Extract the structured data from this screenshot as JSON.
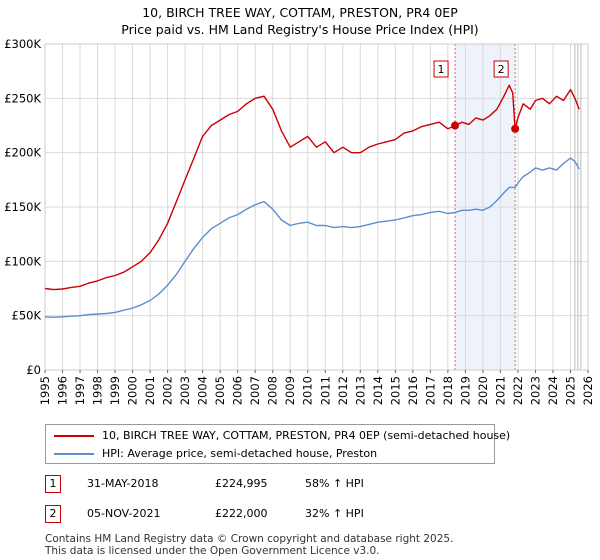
{
  "title_line1": "10, BIRCH TREE WAY, COTTAM, PRESTON, PR4 0EP",
  "title_line2": "Price paid vs. HM Land Registry's House Price Index (HPI)",
  "legend": {
    "property_label": "10, BIRCH TREE WAY, COTTAM, PRESTON, PR4 0EP (semi-detached house)",
    "hpi_label": "HPI: Average price, semi-detached house, Preston"
  },
  "transactions": [
    {
      "num": "1",
      "date": "31-MAY-2018",
      "price": "£224,995",
      "hpi": "58% ↑ HPI"
    },
    {
      "num": "2",
      "date": "05-NOV-2021",
      "price": "£222,000",
      "hpi": "32% ↑ HPI"
    }
  ],
  "footer": {
    "line1": "Contains HM Land Registry data © Crown copyright and database right 2025.",
    "line2": "This data is licensed under the Open Government Licence v3.0."
  },
  "colors": {
    "property": "#cc0000",
    "hpi": "#5b8fcc",
    "shade": "#eef2fb",
    "grid": "#d9d9d9",
    "marker_line": "#e06666"
  },
  "chart_data": {
    "type": "line",
    "title": "Price paid vs. HM Land Registry's House Price Index (HPI)",
    "xlabel": "",
    "ylabel": "",
    "xlim": [
      1995,
      2026
    ],
    "ylim": [
      0,
      300000
    ],
    "y_ticks": [
      {
        "value": 0,
        "label": "£0"
      },
      {
        "value": 50000,
        "label": "£50K"
      },
      {
        "value": 100000,
        "label": "£100K"
      },
      {
        "value": 150000,
        "label": "£150K"
      },
      {
        "value": 200000,
        "label": "£200K"
      },
      {
        "value": 250000,
        "label": "£250K"
      },
      {
        "value": 300000,
        "label": "£300K"
      }
    ],
    "x_ticks": [
      "1995",
      "1996",
      "1997",
      "1998",
      "1999",
      "2000",
      "2001",
      "2002",
      "2003",
      "2004",
      "2005",
      "2006",
      "2007",
      "2008",
      "2009",
      "2010",
      "2011",
      "2012",
      "2013",
      "2014",
      "2015",
      "2016",
      "2017",
      "2018",
      "2019",
      "2020",
      "2021",
      "2022",
      "2023",
      "2024",
      "2025",
      "2026"
    ],
    "shaded_range": [
      2018.41,
      2021.84
    ],
    "forecast_start": 2025.25,
    "series": [
      {
        "name": "10, BIRCH TREE WAY, COTTAM, PRESTON, PR4 0EP (semi-detached house)",
        "color": "#cc0000",
        "x": [
          1995,
          1995.5,
          1996,
          1996.5,
          1997,
          1997.5,
          1998,
          1998.5,
          1999,
          1999.5,
          2000,
          2000.5,
          2001,
          2001.5,
          2002,
          2002.5,
          2003,
          2003.5,
          2004,
          2004.5,
          2005,
          2005.5,
          2006,
          2006.5,
          2007,
          2007.5,
          2008,
          2008.5,
          2009,
          2009.5,
          2010,
          2010.5,
          2011,
          2011.5,
          2012,
          2012.5,
          2013,
          2013.5,
          2014,
          2014.5,
          2015,
          2015.5,
          2016,
          2016.5,
          2017,
          2017.5,
          2018,
          2018.41,
          2018.8,
          2019.2,
          2019.6,
          2020,
          2020.4,
          2020.8,
          2021.2,
          2021.5,
          2021.7,
          2021.84,
          2022,
          2022.3,
          2022.7,
          2023,
          2023.4,
          2023.8,
          2024.2,
          2024.6,
          2025,
          2025.25,
          2025.5
        ],
        "values": [
          75000,
          74000,
          74500,
          76000,
          77000,
          80000,
          82000,
          85000,
          87000,
          90000,
          95000,
          100000,
          108000,
          120000,
          135000,
          155000,
          175000,
          195000,
          215000,
          225000,
          230000,
          235000,
          238000,
          245000,
          250000,
          252000,
          240000,
          220000,
          205000,
          210000,
          215000,
          205000,
          210000,
          200000,
          205000,
          200000,
          200000,
          205000,
          208000,
          210000,
          212000,
          218000,
          220000,
          224000,
          226000,
          228000,
          222000,
          224995,
          228000,
          226000,
          232000,
          230000,
          234000,
          240000,
          252000,
          262000,
          255000,
          222000,
          232000,
          245000,
          240000,
          248000,
          250000,
          245000,
          252000,
          248000,
          258000,
          250000,
          240000
        ]
      },
      {
        "name": "HPI: Average price, semi-detached house, Preston",
        "color": "#5b8fcc",
        "x": [
          1995,
          1995.5,
          1996,
          1996.5,
          1997,
          1997.5,
          1998,
          1998.5,
          1999,
          1999.5,
          2000,
          2000.5,
          2001,
          2001.5,
          2002,
          2002.5,
          2003,
          2003.5,
          2004,
          2004.5,
          2005,
          2005.5,
          2006,
          2006.5,
          2007,
          2007.5,
          2008,
          2008.5,
          2009,
          2009.5,
          2010,
          2010.5,
          2011,
          2011.5,
          2012,
          2012.5,
          2013,
          2013.5,
          2014,
          2014.5,
          2015,
          2015.5,
          2016,
          2016.5,
          2017,
          2017.5,
          2018,
          2018.41,
          2018.8,
          2019.2,
          2019.6,
          2020,
          2020.4,
          2020.8,
          2021.2,
          2021.5,
          2021.84,
          2022,
          2022.3,
          2022.7,
          2023,
          2023.4,
          2023.8,
          2024.2,
          2024.6,
          2025,
          2025.25,
          2025.5
        ],
        "values": [
          49000,
          48500,
          49000,
          49500,
          50000,
          51000,
          51500,
          52000,
          53000,
          55000,
          57000,
          60000,
          64000,
          70000,
          78000,
          88000,
          100000,
          112000,
          122000,
          130000,
          135000,
          140000,
          143000,
          148000,
          152000,
          155000,
          148000,
          138000,
          133000,
          135000,
          136000,
          133000,
          133000,
          131000,
          132000,
          131000,
          132000,
          134000,
          136000,
          137000,
          138000,
          140000,
          142000,
          143000,
          145000,
          146000,
          144000,
          145000,
          147000,
          147000,
          148000,
          147000,
          150000,
          156000,
          163000,
          168000,
          168000,
          172000,
          178000,
          182000,
          186000,
          184000,
          186000,
          184000,
          190000,
          195000,
          192000,
          185000
        ]
      }
    ],
    "markers": [
      {
        "label": "1",
        "x": 2018.41,
        "value": 224995
      },
      {
        "label": "2",
        "x": 2021.84,
        "value": 222000
      }
    ]
  }
}
